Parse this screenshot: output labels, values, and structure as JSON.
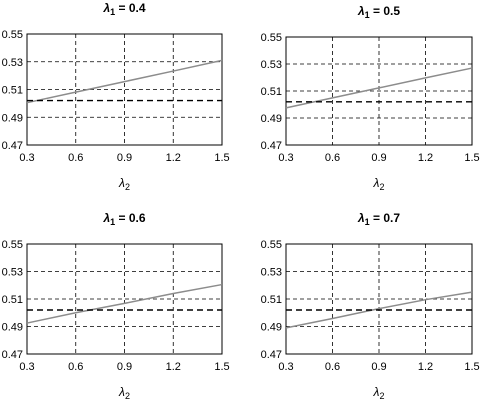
{
  "chart_data": [
    {
      "type": "line",
      "title": "λ1 = 0.4",
      "title_symbol": "λ",
      "title_subscript": "1",
      "title_rest": " = 0.4",
      "xlabel_symbol": "λ",
      "xlabel_subscript": "2",
      "xlim": [
        0.3,
        1.5
      ],
      "ylim": [
        0.47,
        0.55
      ],
      "xticks": [
        "0.3",
        "0.6",
        "0.9",
        "1.2",
        "1.5"
      ],
      "yticks": [
        "0.47",
        "0.49",
        "0.51",
        "0.53",
        "0.55"
      ],
      "grid": true,
      "series": [
        {
          "style": "solid",
          "color": "#8c8c8c",
          "x": [
            0.3,
            0.6,
            0.9,
            1.2,
            1.5
          ],
          "y": [
            0.5005,
            0.5081,
            0.5157,
            0.5233,
            0.531
          ]
        },
        {
          "style": "dashed",
          "color": "#000000",
          "x": [
            0.3,
            1.5
          ],
          "y": [
            0.502,
            0.502
          ]
        }
      ]
    },
    {
      "type": "line",
      "title": "λ1 = 0.5",
      "title_symbol": "λ",
      "title_subscript": "1",
      "title_rest": " = 0.5",
      "xlabel_symbol": "λ",
      "xlabel_subscript": "2",
      "xlim": [
        0.3,
        1.5
      ],
      "ylim": [
        0.47,
        0.55
      ],
      "xticks": [
        "0.3",
        "0.6",
        "0.9",
        "1.2",
        "1.5"
      ],
      "yticks": [
        "0.47",
        "0.49",
        "0.51",
        "0.53",
        "0.55"
      ],
      "grid": true,
      "series": [
        {
          "style": "solid",
          "color": "#8c8c8c",
          "x": [
            0.3,
            0.6,
            0.9,
            1.2,
            1.5
          ],
          "y": [
            0.4975,
            0.5049,
            0.5123,
            0.5197,
            0.527
          ]
        },
        {
          "style": "dashed",
          "color": "#000000",
          "x": [
            0.3,
            1.5
          ],
          "y": [
            0.502,
            0.502
          ]
        }
      ]
    },
    {
      "type": "line",
      "title": "λ1 = 0.6",
      "title_symbol": "λ",
      "title_subscript": "1",
      "title_rest": " = 0.6",
      "xlabel_symbol": "λ",
      "xlabel_subscript": "2",
      "xlim": [
        0.3,
        1.5
      ],
      "ylim": [
        0.47,
        0.55
      ],
      "xticks": [
        "0.3",
        "0.6",
        "0.9",
        "1.2",
        "1.5"
      ],
      "yticks": [
        "0.47",
        "0.49",
        "0.51",
        "0.53",
        "0.55"
      ],
      "grid": true,
      "series": [
        {
          "style": "solid",
          "color": "#8c8c8c",
          "x": [
            0.3,
            0.6,
            0.9,
            1.2,
            1.5
          ],
          "y": [
            0.4925,
            0.5,
            0.5068,
            0.514,
            0.5205
          ]
        },
        {
          "style": "dashed",
          "color": "#000000",
          "x": [
            0.3,
            1.5
          ],
          "y": [
            0.502,
            0.502
          ]
        }
      ]
    },
    {
      "type": "line",
      "title": "λ1 = 0.7",
      "title_symbol": "λ",
      "title_subscript": "1",
      "title_rest": " = 0.7",
      "xlabel_symbol": "λ",
      "xlabel_subscript": "2",
      "xlim": [
        0.3,
        1.5
      ],
      "ylim": [
        0.47,
        0.55
      ],
      "xticks": [
        "0.3",
        "0.6",
        "0.9",
        "1.2",
        "1.5"
      ],
      "yticks": [
        "0.47",
        "0.49",
        "0.51",
        "0.53",
        "0.55"
      ],
      "grid": true,
      "series": [
        {
          "style": "solid",
          "color": "#8c8c8c",
          "x": [
            0.3,
            0.6,
            0.9,
            1.2,
            1.5
          ],
          "y": [
            0.489,
            0.4958,
            0.503,
            0.5095,
            0.515
          ]
        },
        {
          "style": "dashed",
          "color": "#000000",
          "x": [
            0.3,
            1.5
          ],
          "y": [
            0.502,
            0.502
          ]
        }
      ]
    }
  ]
}
